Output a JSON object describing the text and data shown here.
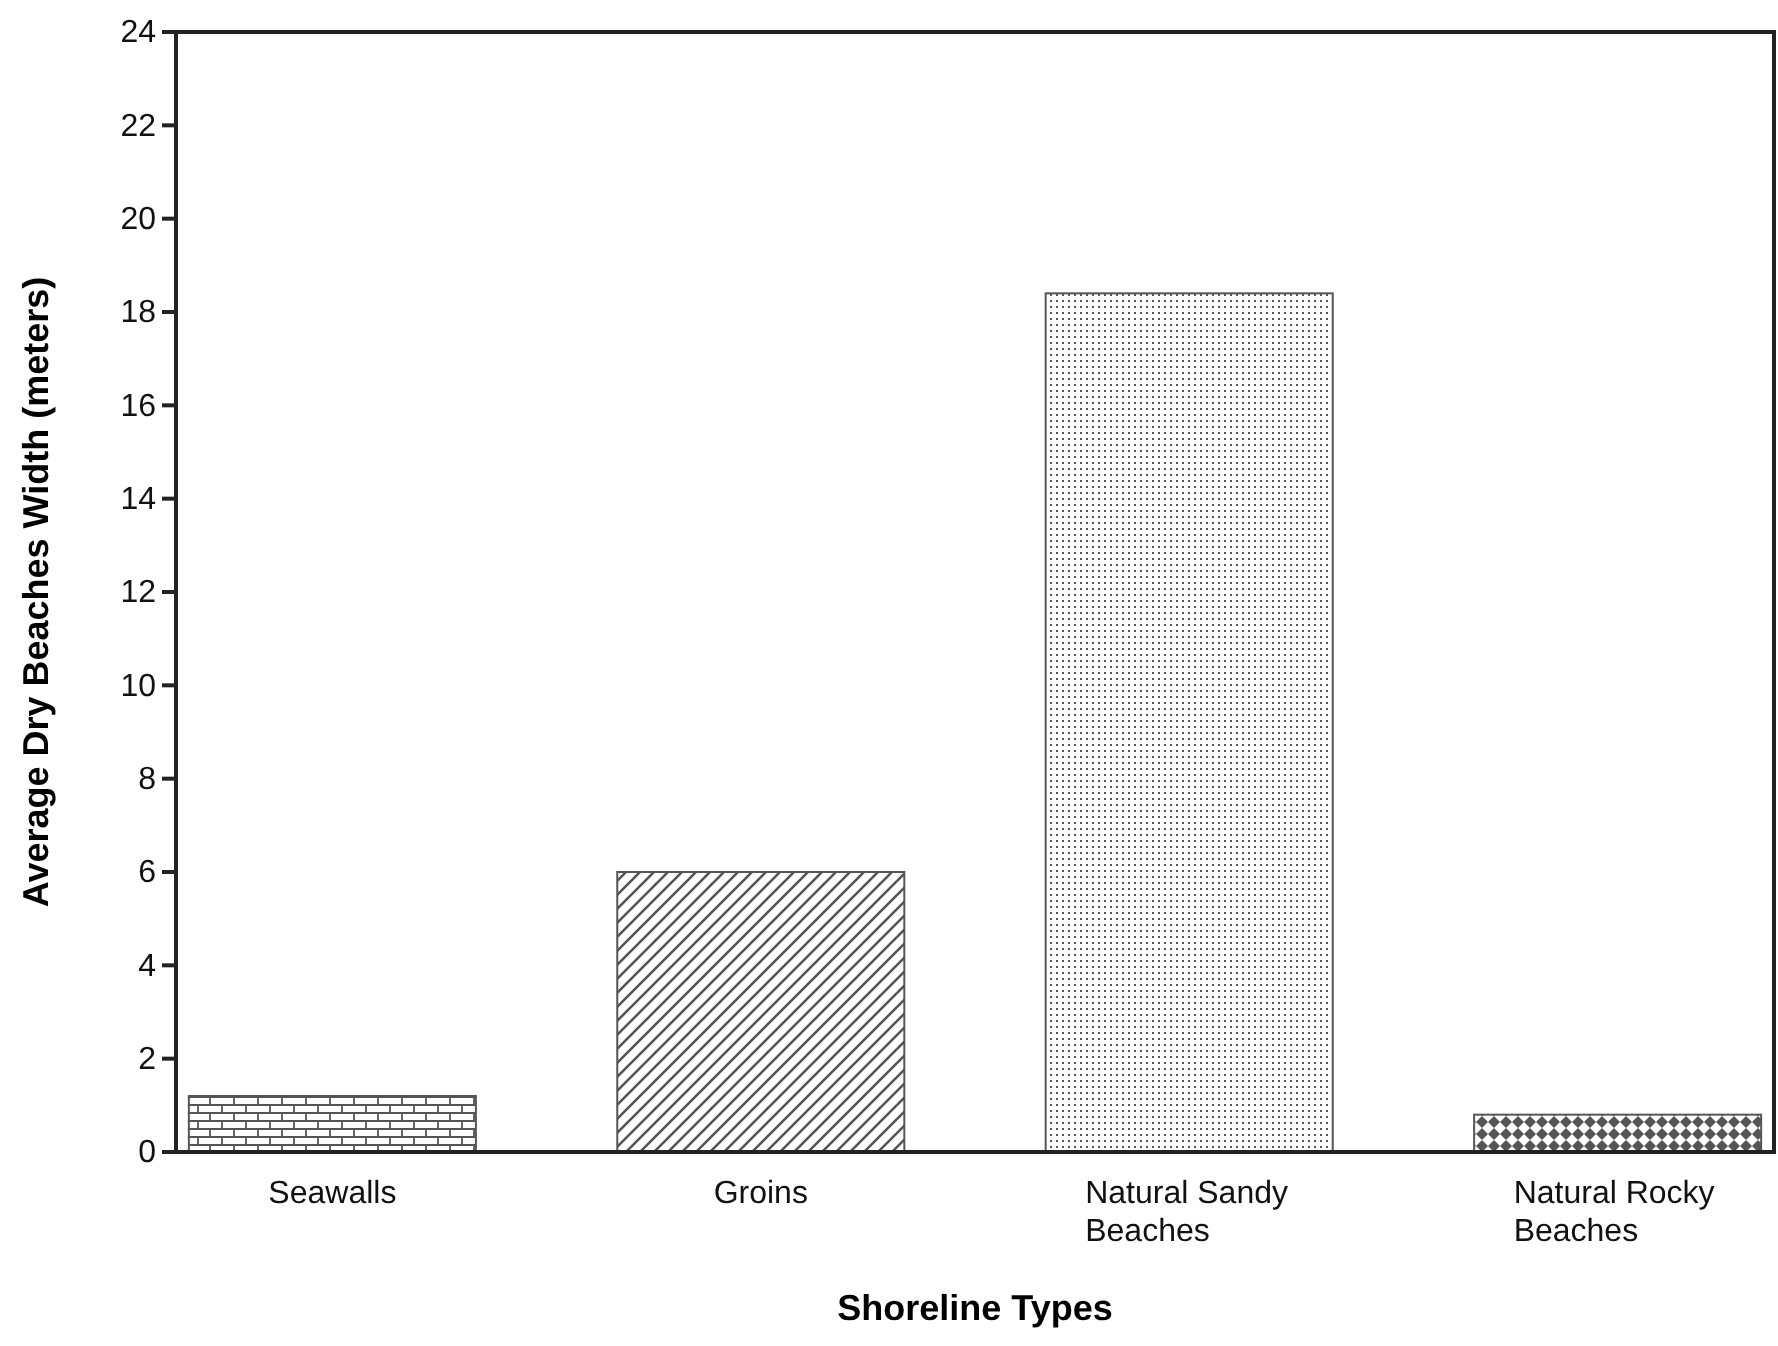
{
  "chart_data": {
    "type": "bar",
    "xlabel": "Shoreline Types",
    "ylabel": "Average Dry Beaches Width (meters)",
    "categories": [
      "Seawalls",
      "Groins",
      "Natural Sandy Beaches",
      "Natural Rocky Beaches"
    ],
    "values": [
      1.2,
      6.0,
      18.4,
      0.8
    ],
    "colors": [
      "#555555",
      "#555555",
      "#555555",
      "#555555"
    ],
    "ylim": [
      0,
      24
    ],
    "yticks": [
      0,
      2,
      4,
      6,
      8,
      10,
      12,
      14,
      16,
      18,
      20,
      22,
      24
    ],
    "grid": false
  }
}
